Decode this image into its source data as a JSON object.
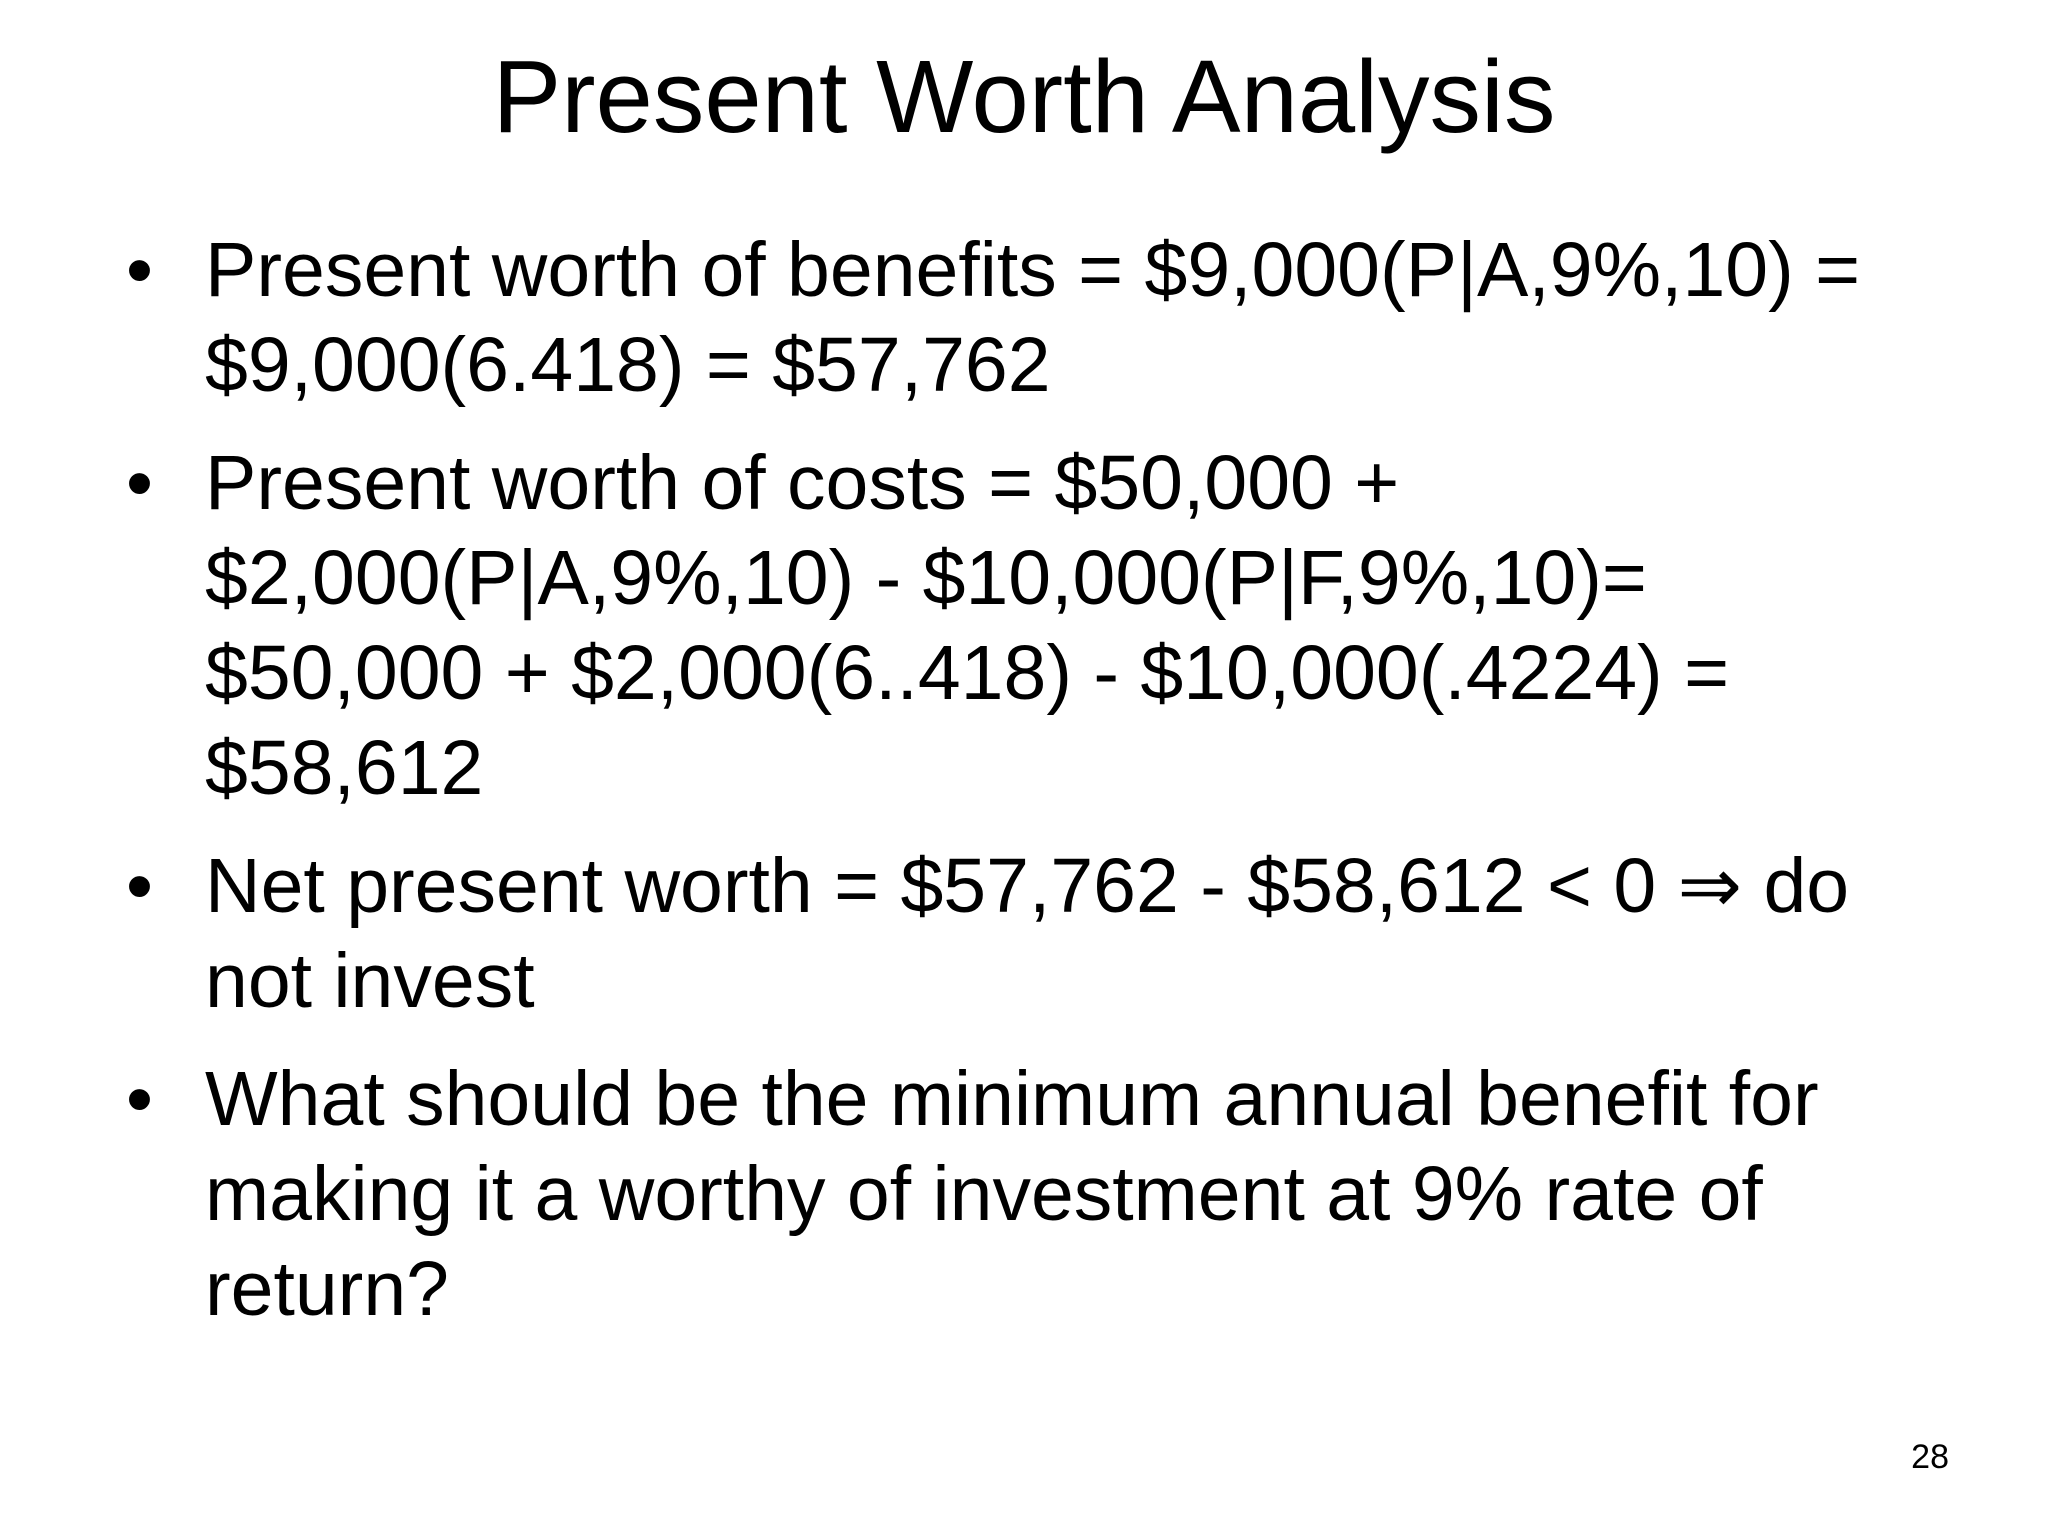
{
  "title": "Present Worth Analysis",
  "bullets": [
    {
      "lines": [
        "Present worth of benefits = $9,000(P|A,9%,10) =",
        "$9,000(6.418) = $57,762"
      ]
    },
    {
      "lines": [
        "Present worth of costs = $50,000 +",
        "$2,000(P|A,9%,10) - $10,000(P|F,9%,10)=",
        "$50,000 + $2,000(6..418) - $10,000(.4224) =",
        "$58,612"
      ]
    },
    {
      "lines": [
        "Net present worth = $57,762 - $58,612 < 0 ⇒ do",
        "not invest"
      ]
    },
    {
      "lines": [
        "What should be the minimum annual benefit for",
        "making it a worthy of investment at 9% rate of",
        "return?"
      ]
    }
  ],
  "page_number": "28"
}
